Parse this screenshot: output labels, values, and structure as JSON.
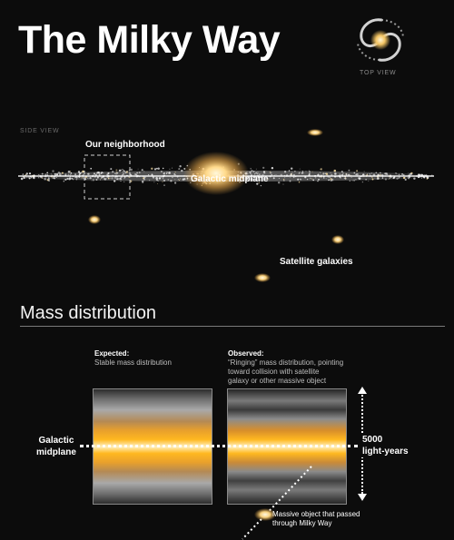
{
  "title": "The Milky Way",
  "top_view_label": "TOP VIEW",
  "side_view_label": "SIDE VIEW",
  "side_view": {
    "neighborhood_label": "Our neighborhood",
    "midplane_label": "Galactic midplane",
    "satellites_label": "Satellite galaxies"
  },
  "mass_distribution": {
    "heading": "Mass distribution",
    "expected": {
      "header": "Expected:",
      "description": "Stable mass distribution"
    },
    "observed": {
      "header": "Observed:",
      "description_lines": [
        "“Ringing” mass distribution, pointing",
        "toward collision with satellite",
        "galaxy or other massive object"
      ]
    },
    "midplane_label_lines": [
      "Galactic",
      "midplane"
    ],
    "scale_lines": [
      "5000",
      "light-years"
    ],
    "massive_object_lines": [
      "Massive object that passed",
      "through Milky Way"
    ]
  },
  "colors": {
    "background": "#0c0c0c",
    "glow_core": "#fff4c8",
    "glow_mid": "#f5b22a",
    "text": "#ffffff"
  },
  "icons": {
    "spiral_galaxy": "spiral-galaxy-icon",
    "satellite_galaxy": "satellite-galaxy-icon"
  }
}
